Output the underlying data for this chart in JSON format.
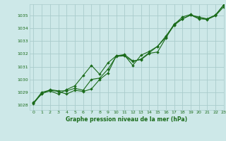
{
  "title": "Graphe pression niveau de la mer (hPa)",
  "bg_color": "#cde8e8",
  "grid_color": "#aacccc",
  "line_color": "#1a6b1a",
  "xlim": [
    -0.5,
    23
  ],
  "ylim": [
    1027.6,
    1035.9
  ],
  "yticks": [
    1028,
    1029,
    1030,
    1031,
    1032,
    1033,
    1034,
    1035
  ],
  "xticks": [
    0,
    1,
    2,
    3,
    4,
    5,
    6,
    7,
    8,
    9,
    10,
    11,
    12,
    13,
    14,
    15,
    16,
    17,
    18,
    19,
    20,
    21,
    22,
    23
  ],
  "series1": {
    "x": [
      0,
      1,
      2,
      3,
      4,
      5,
      6,
      7,
      8,
      9,
      10,
      11,
      12,
      13,
      14,
      15,
      16,
      17,
      18,
      19,
      20,
      21,
      22,
      23
    ],
    "y": [
      1028.1,
      1028.9,
      1029.1,
      1028.85,
      1029.2,
      1029.5,
      1030.3,
      1031.1,
      1030.4,
      1031.3,
      1031.85,
      1031.9,
      1031.1,
      1031.9,
      1032.2,
      1032.6,
      1033.4,
      1034.3,
      1034.9,
      1035.1,
      1034.8,
      1034.7,
      1035.0,
      1035.7
    ]
  },
  "series2": {
    "x": [
      0,
      1,
      2,
      3,
      4,
      5,
      6,
      7,
      8,
      9,
      10,
      11,
      12,
      13,
      14,
      15,
      16,
      17,
      18,
      19,
      20,
      21,
      22,
      23
    ],
    "y": [
      1028.15,
      1029.0,
      1029.15,
      1029.05,
      1028.85,
      1029.15,
      1029.05,
      1029.25,
      1030.0,
      1030.5,
      1031.85,
      1031.95,
      1031.45,
      1031.55,
      1032.05,
      1032.15,
      1033.25,
      1034.35,
      1034.75,
      1035.05,
      1034.75,
      1034.75,
      1035.05,
      1035.85
    ]
  },
  "series3": {
    "x": [
      0,
      1,
      2,
      3,
      4,
      5,
      6,
      7,
      8,
      9,
      10,
      11,
      12,
      13,
      14,
      15,
      16,
      17,
      18,
      19,
      20,
      21,
      22,
      23
    ],
    "y": [
      1028.2,
      1028.85,
      1029.2,
      1029.1,
      1029.1,
      1029.3,
      1029.15,
      1030.0,
      1030.1,
      1030.8,
      1031.8,
      1031.85,
      1031.4,
      1031.6,
      1032.1,
      1032.6,
      1033.3,
      1034.25,
      1034.75,
      1035.05,
      1034.9,
      1034.75,
      1035.05,
      1035.85
    ]
  }
}
